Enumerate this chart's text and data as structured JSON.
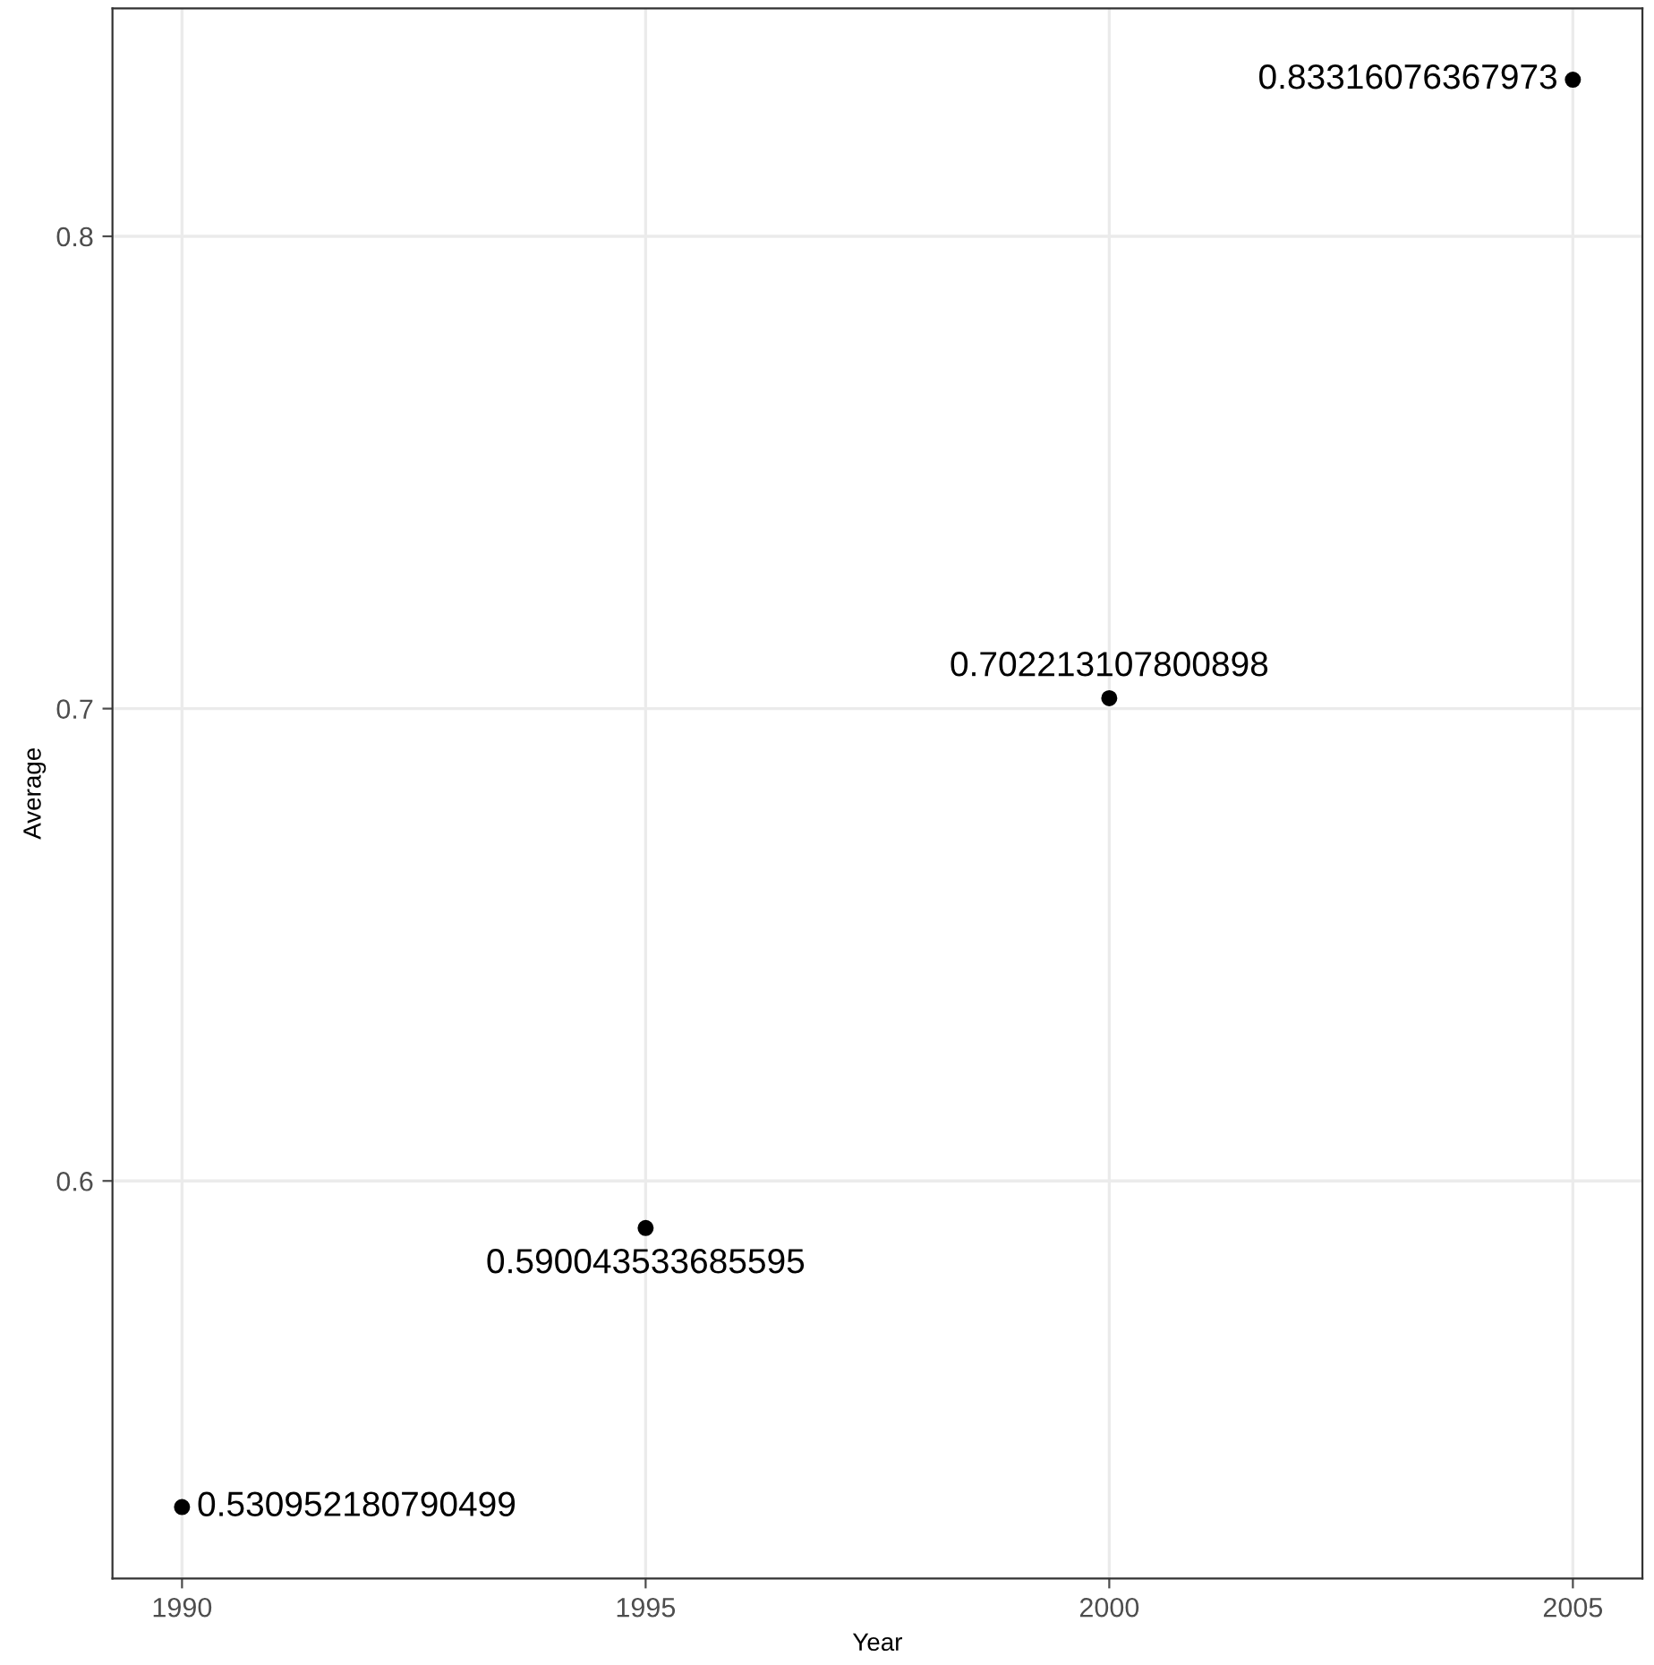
{
  "chart_data": {
    "type": "scatter",
    "xlabel": "Year",
    "ylabel": "Average",
    "x": [
      1990,
      1995,
      2000,
      2005
    ],
    "series": [
      {
        "color": "#000000",
        "values": [
          0.530952180790499,
          0.590043533685595,
          0.702213107800898,
          0.83316076367973
        ]
      }
    ],
    "data_labels": true,
    "marker": "circle",
    "grid": true,
    "xlim": [
      1989.25,
      2005.75
    ],
    "xticks": [
      1990,
      1995,
      2000,
      2005
    ],
    "ylim": [
      0.51584,
      0.84827
    ],
    "yticks": [
      0.6,
      0.7,
      0.8
    ]
  }
}
